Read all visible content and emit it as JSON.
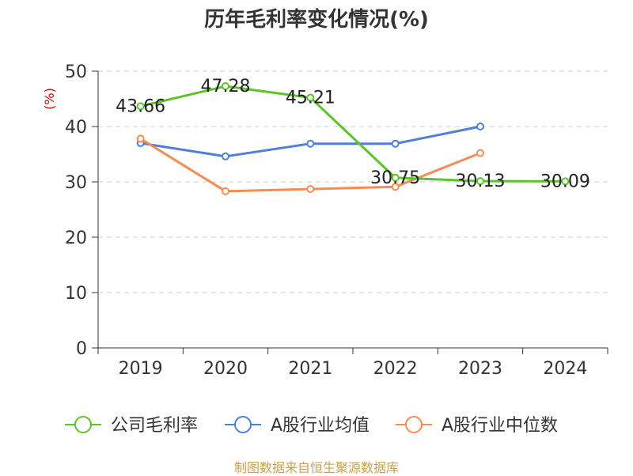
{
  "chart_data": {
    "type": "line",
    "title": "历年毛利率变化情况(%)",
    "ylabel": "(%)",
    "xlabel": "",
    "categories": [
      "2019",
      "2020",
      "2021",
      "2022",
      "2023",
      "2024"
    ],
    "ylim": [
      0,
      50
    ],
    "yticks": [
      0,
      10,
      20,
      30,
      40,
      50
    ],
    "ytick_labels": [
      "0",
      "10",
      "20",
      "30",
      "40",
      "50"
    ],
    "grid": "horizontal dashed",
    "legend_position": "bottom",
    "series": [
      {
        "name": "公司毛利率",
        "color": "#5cc42a",
        "values": [
          43.66,
          47.28,
          45.21,
          30.75,
          30.13,
          30.09
        ],
        "labels": [
          "43.66",
          "47.28",
          "45.21",
          "30.75",
          "30.13",
          "30.09"
        ]
      },
      {
        "name": "A股行业均值",
        "color": "#4f7fd6",
        "values": [
          37.0,
          34.6,
          36.9,
          36.9,
          40.0,
          null
        ]
      },
      {
        "name": "A股行业中位数",
        "color": "#f58c54",
        "values": [
          37.8,
          28.3,
          28.7,
          29.1,
          35.2,
          null
        ]
      }
    ]
  },
  "footer": {
    "source": "制图数据来自恒生聚源数据库"
  }
}
